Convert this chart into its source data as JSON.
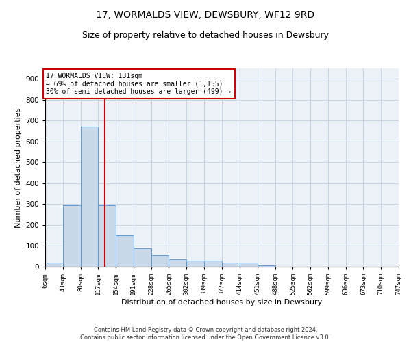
{
  "title": "17, WORMALDS VIEW, DEWSBURY, WF12 9RD",
  "subtitle": "Size of property relative to detached houses in Dewsbury",
  "xlabel": "Distribution of detached houses by size in Dewsbury",
  "ylabel": "Number of detached properties",
  "bar_edges": [
    6,
    43,
    80,
    117,
    154,
    191,
    228,
    265,
    302,
    339,
    377,
    414,
    451,
    488,
    525,
    562,
    599,
    636,
    673,
    710,
    747
  ],
  "bar_heights": [
    20,
    295,
    670,
    295,
    150,
    90,
    55,
    35,
    30,
    28,
    20,
    20,
    8,
    0,
    0,
    0,
    0,
    0,
    0,
    0
  ],
  "bar_color": "#c9d9ea",
  "bar_edgecolor": "#5b9bd5",
  "red_line_x": 131,
  "annotation_text": "17 WORMALDS VIEW: 131sqm\n← 69% of detached houses are smaller (1,155)\n30% of semi-detached houses are larger (499) →",
  "annotation_box_color": "#ffffff",
  "annotation_box_edgecolor": "#cc0000",
  "red_line_color": "#cc0000",
  "ylim": [
    0,
    950
  ],
  "yticks": [
    0,
    100,
    200,
    300,
    400,
    500,
    600,
    700,
    800,
    900
  ],
  "tick_labels": [
    "6sqm",
    "43sqm",
    "80sqm",
    "117sqm",
    "154sqm",
    "191sqm",
    "228sqm",
    "265sqm",
    "302sqm",
    "339sqm",
    "377sqm",
    "414sqm",
    "451sqm",
    "488sqm",
    "525sqm",
    "562sqm",
    "599sqm",
    "636sqm",
    "673sqm",
    "710sqm",
    "747sqm"
  ],
  "footer_text": "Contains HM Land Registry data © Crown copyright and database right 2024.\nContains public sector information licensed under the Open Government Licence v3.0.",
  "bg_color": "#ffffff",
  "grid_color": "#c8d4e3",
  "title_fontsize": 10,
  "subtitle_fontsize": 9,
  "axis_label_fontsize": 8,
  "annotation_fontsize": 7,
  "footer_fontsize": 6
}
